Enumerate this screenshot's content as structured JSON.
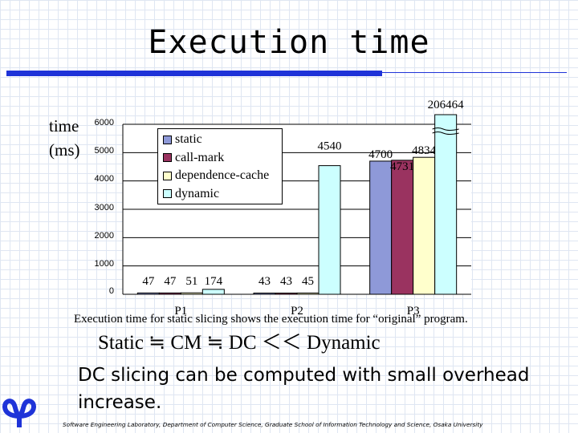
{
  "slide": {
    "title": "Execution time",
    "caption": "Execution time for static slicing shows the execution time for “original” program.",
    "summary": "Static ≒ CM ≒ DC ＜＜ Dynamic",
    "note": "DC slicing can be computed with small overhead increase.",
    "footer": "Software Engineering Laboratory, Department of Computer Science, Graduate School of Information Technology and Science, Osaka University",
    "accent_color": "#1e33d8",
    "logo_icon": "university-logo-icon"
  },
  "chart_data": {
    "type": "bar",
    "title": "",
    "ylabel": [
      "time",
      "(ms)"
    ],
    "ylim": [
      0,
      6000
    ],
    "yticks": [
      "0",
      "1000",
      "2000",
      "3000",
      "4000",
      "5000",
      "6000"
    ],
    "categories": [
      "P1",
      "P2",
      "P3"
    ],
    "axis_break": "P3 dynamic bar exceeds the axis",
    "legend_position": "top-left",
    "series": [
      {
        "name": "static",
        "color": "#8e99d8",
        "values": [
          47,
          43,
          4700
        ],
        "labels": [
          "47",
          "43",
          "4700"
        ]
      },
      {
        "name": "call-mark",
        "color": "#9a3360",
        "values": [
          47,
          43,
          4731
        ],
        "labels": [
          "47",
          "43",
          "4731"
        ]
      },
      {
        "name": "dependence-cache",
        "color": "#ffffcc",
        "values": [
          51,
          45,
          4834
        ],
        "labels": [
          "51",
          "45",
          "4834"
        ]
      },
      {
        "name": "dynamic",
        "color": "#ccffff",
        "values": [
          174,
          4540,
          206464
        ],
        "labels": [
          "174",
          "4540",
          "206464"
        ]
      }
    ]
  }
}
